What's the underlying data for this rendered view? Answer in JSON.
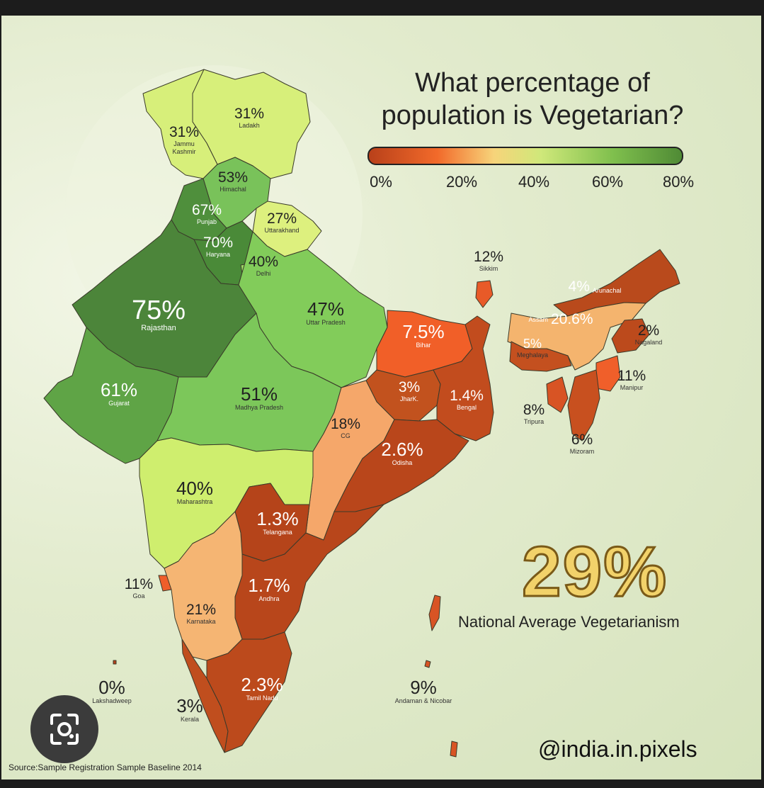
{
  "title": "What percentage of population is Vegetarian?",
  "legend": {
    "ticks": [
      "0%",
      "20%",
      "40%",
      "60%",
      "80%"
    ],
    "colors": [
      "#b8401a",
      "#f26a2a",
      "#f7d47a",
      "#cfe87a",
      "#7fbf4d",
      "#4f8a35"
    ]
  },
  "states": [
    {
      "key": "ladakh",
      "pct": "31%",
      "name": "Ladakh",
      "color": "#d7ef7a"
    },
    {
      "key": "jk",
      "pct": "31%",
      "name": "Jammu Kashmir",
      "color": "#d7ef7a"
    },
    {
      "key": "himachal",
      "pct": "53%",
      "name": "Himachal",
      "color": "#79c25a"
    },
    {
      "key": "punjab",
      "pct": "67%",
      "name": "Punjab",
      "color": "#4f8f3c"
    },
    {
      "key": "uttarakhand",
      "pct": "27%",
      "name": "Uttarakhand",
      "color": "#ddf07e"
    },
    {
      "key": "haryana",
      "pct": "70%",
      "name": "Haryana",
      "color": "#4a8a38"
    },
    {
      "key": "delhi",
      "pct": "40%",
      "name": "Delhi",
      "color": "#9ed765"
    },
    {
      "key": "rajasthan",
      "pct": "75%",
      "name": "Rajasthan",
      "color": "#4c853a"
    },
    {
      "key": "up",
      "pct": "47%",
      "name": "Uttar Pradesh",
      "color": "#82cc5a"
    },
    {
      "key": "gujarat",
      "pct": "61%",
      "name": "Gujarat",
      "color": "#5fa446"
    },
    {
      "key": "mp",
      "pct": "51%",
      "name": "Madhya Pradesh",
      "color": "#7cc75a"
    },
    {
      "key": "bihar",
      "pct": "7.5%",
      "name": "Bihar",
      "color": "#f15f28"
    },
    {
      "key": "jharkhand",
      "pct": "3%",
      "name": "JharK.",
      "color": "#c2521e"
    },
    {
      "key": "bengal",
      "pct": "1.4%",
      "name": "Bengal",
      "color": "#c24c1e"
    },
    {
      "key": "cg",
      "pct": "18%",
      "name": "CG",
      "color": "#f5a76a"
    },
    {
      "key": "odisha",
      "pct": "2.6%",
      "name": "Odisha",
      "color": "#b9461b"
    },
    {
      "key": "maharashtra",
      "pct": "40%",
      "name": "Maharashtra",
      "color": "#cfee6e"
    },
    {
      "key": "telangana",
      "pct": "1.3%",
      "name": "Telangana",
      "color": "#b5441a"
    },
    {
      "key": "goa",
      "pct": "11%",
      "name": "Goa",
      "color": "#ef5e2a"
    },
    {
      "key": "karnataka",
      "pct": "21%",
      "name": "Karnataka",
      "color": "#f5b573"
    },
    {
      "key": "andhra",
      "pct": "1.7%",
      "name": "Andhra",
      "color": "#b8461b"
    },
    {
      "key": "tamilnadu",
      "pct": "2.3%",
      "name": "Tamil Nadu",
      "color": "#bc4a1c"
    },
    {
      "key": "kerala",
      "pct": "3%",
      "name": "Kerala",
      "color": "#c04e1e"
    },
    {
      "key": "lakshadweep",
      "pct": "0%",
      "name": "Lakshadweep",
      "color": "#b8401a"
    },
    {
      "key": "sikkim",
      "pct": "12%",
      "name": "Sikkim",
      "color": "#e85a28"
    },
    {
      "key": "arunachal",
      "pct": "4%",
      "name": "Arunachal",
      "color": "#b94a1c"
    },
    {
      "key": "assam",
      "pct": "20.6%",
      "name": "Assam",
      "color": "#f4b46e"
    },
    {
      "key": "meghalaya",
      "pct": "5%",
      "name": "Meghalaya",
      "color": "#c4501f"
    },
    {
      "key": "nagaland",
      "pct": "2%",
      "name": "Nagaland",
      "color": "#bc4a1c"
    },
    {
      "key": "manipur",
      "pct": "11%",
      "name": "Manipur",
      "color": "#f05f2a"
    },
    {
      "key": "tripura",
      "pct": "8%",
      "name": "Tripura",
      "color": "#d85424"
    },
    {
      "key": "mizoram",
      "pct": "6%",
      "name": "Mizoram",
      "color": "#c8501f"
    },
    {
      "key": "andaman",
      "pct": "9%",
      "name": "Andaman & Nicobar",
      "color": "#d85424"
    }
  ],
  "national_average": {
    "value": "29%",
    "label": "National Average Vegetarianism"
  },
  "handle": "@india.in.pixels",
  "source": "Source:Sample Registration Sample Baseline 2014"
}
